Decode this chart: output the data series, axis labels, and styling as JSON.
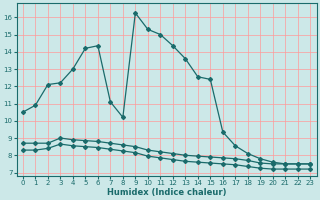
{
  "bg_color": "#cce8e8",
  "grid_color": "#ff9999",
  "line_color": "#1a6b6b",
  "xlabel": "Humidex (Indice chaleur)",
  "xlim": [
    -0.5,
    23.5
  ],
  "ylim": [
    6.8,
    16.8
  ],
  "yticks": [
    7,
    8,
    9,
    10,
    11,
    12,
    13,
    14,
    15,
    16
  ],
  "xticks": [
    0,
    1,
    2,
    3,
    4,
    5,
    6,
    7,
    8,
    9,
    10,
    11,
    12,
    13,
    14,
    15,
    16,
    17,
    18,
    19,
    20,
    21,
    22,
    23
  ],
  "line1_x": [
    0,
    1,
    2,
    3,
    4,
    5,
    6,
    7,
    8,
    9,
    10,
    11,
    12,
    13,
    14,
    15,
    16,
    17,
    18,
    19,
    20,
    21,
    22,
    23
  ],
  "line1_y": [
    10.5,
    10.9,
    12.1,
    12.2,
    13.0,
    14.2,
    14.35,
    11.1,
    10.2,
    16.25,
    15.3,
    15.0,
    14.35,
    13.6,
    12.55,
    12.4,
    9.35,
    8.55,
    8.1,
    7.8,
    7.6,
    7.5,
    7.5,
    7.5
  ],
  "line2_x": [
    0,
    1,
    2,
    3,
    4,
    5,
    6,
    7,
    8,
    9,
    10,
    11,
    12,
    13,
    14,
    15,
    16,
    17,
    18,
    19,
    20,
    21,
    22,
    23
  ],
  "line2_y": [
    8.7,
    8.7,
    8.7,
    9.0,
    8.9,
    8.85,
    8.8,
    8.7,
    8.6,
    8.5,
    8.3,
    8.2,
    8.1,
    8.0,
    7.95,
    7.9,
    7.85,
    7.8,
    7.7,
    7.55,
    7.5,
    7.5,
    7.5,
    7.5
  ],
  "line3_x": [
    0,
    1,
    2,
    3,
    4,
    5,
    6,
    7,
    8,
    9,
    10,
    11,
    12,
    13,
    14,
    15,
    16,
    17,
    18,
    19,
    20,
    21,
    22,
    23
  ],
  "line3_y": [
    8.3,
    8.3,
    8.4,
    8.65,
    8.55,
    8.5,
    8.45,
    8.35,
    8.25,
    8.15,
    7.95,
    7.85,
    7.75,
    7.65,
    7.6,
    7.55,
    7.5,
    7.45,
    7.35,
    7.25,
    7.2,
    7.2,
    7.2,
    7.2
  ]
}
